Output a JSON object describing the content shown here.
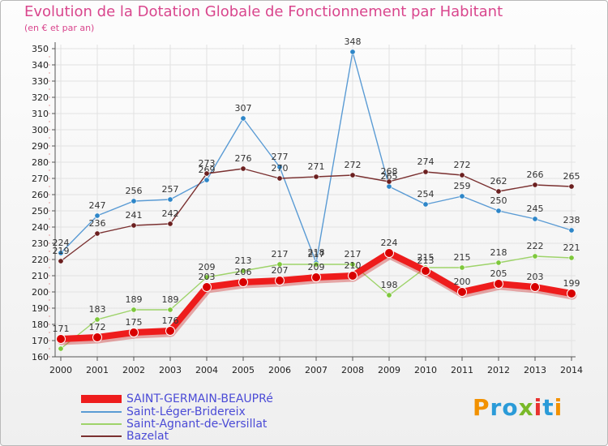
{
  "chart_data": {
    "type": "line",
    "title": "Evolution de la Dotation Globale de Fonctionnement par Habitant",
    "subtitle": "(en € et par an)",
    "xlabel": "",
    "ylabel": "",
    "ylim": [
      160,
      350
    ],
    "ytick_step": 10,
    "grid": true,
    "legend_position": "bottom-left",
    "categories": [
      "2000",
      "2001",
      "2002",
      "2003",
      "2004",
      "2005",
      "2006",
      "2007",
      "2008",
      "2009",
      "2010",
      "2011",
      "2012",
      "2013",
      "2014"
    ],
    "series": [
      {
        "name": "Saint-Léger-Bridereix",
        "color": "#5a9bd4",
        "marker": "#2e86c8",
        "values": [
          224,
          247,
          256,
          257,
          269,
          307,
          277,
          218,
          348,
          265,
          254,
          259,
          250,
          245,
          238
        ],
        "labels": [
          "224",
          "247",
          "256",
          "257",
          "269",
          "307",
          "277",
          "218",
          "348",
          "265",
          "254",
          "259",
          "250",
          "245",
          "238"
        ]
      },
      {
        "name": "Saint-Agnant-de-Versillat",
        "color": "#9ed36a",
        "marker": "#7ec83c",
        "values": [
          165,
          183,
          189,
          189,
          209,
          213,
          217,
          217,
          217,
          198,
          215,
          215,
          218,
          222,
          221
        ],
        "labels": [
          "",
          "183",
          "189",
          "189",
          "209",
          "213",
          "217",
          "217",
          "217",
          "198",
          "215",
          "215",
          "218",
          "222",
          "221"
        ]
      },
      {
        "name": "Bazelat",
        "color": "#7a3030",
        "marker": "#6b1f1f",
        "values": [
          219,
          236,
          241,
          242,
          273,
          276,
          270,
          271,
          272,
          268,
          274,
          272,
          262,
          266,
          265
        ],
        "labels": [
          "219",
          "236",
          "241",
          "242",
          "273",
          "276",
          "270",
          "271",
          "272",
          "268",
          "274",
          "272",
          "262",
          "266",
          "265"
        ]
      },
      {
        "name": "SAINT-GERMAIN-BEAUPRé",
        "color": "#ee1c1c",
        "marker": "#d80000",
        "values": [
          171,
          172,
          175,
          176,
          203,
          206,
          207,
          209,
          210,
          224,
          213,
          200,
          205,
          203,
          199
        ],
        "labels": [
          "171",
          "172",
          "175",
          "176",
          "203",
          "206",
          "207",
          "209",
          "210",
          "224",
          "213",
          "200",
          "205",
          "203",
          "199"
        ]
      }
    ]
  },
  "legend": {
    "items": [
      {
        "label": "SAINT-GERMAIN-BEAUPRé",
        "color": "#ee1c1c"
      },
      {
        "label": "Saint-Léger-Bridereix",
        "color": "#5a9bd4"
      },
      {
        "label": "Saint-Agnant-de-Versillat",
        "color": "#9ed36a"
      },
      {
        "label": "Bazelat",
        "color": "#7a3030"
      }
    ]
  },
  "brand": {
    "text": "Proxiti"
  }
}
